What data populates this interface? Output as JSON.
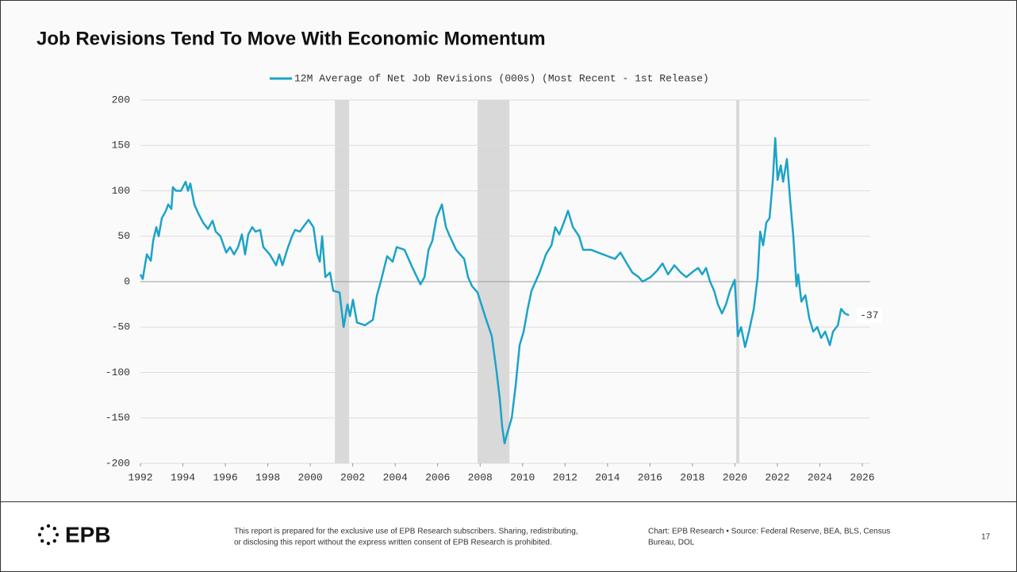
{
  "chart_data": {
    "type": "line",
    "title": "Job Revisions Tend To Move With Economic Momentum",
    "x": [
      1992.0,
      1992.11,
      1992.3,
      1992.49,
      1992.6,
      1992.75,
      1992.86,
      1993.01,
      1993.2,
      1993.31,
      1993.46,
      1993.53,
      1993.68,
      1993.91,
      1994.13,
      1994.24,
      1994.35,
      1994.54,
      1994.73,
      1994.95,
      1995.18,
      1995.4,
      1995.55,
      1995.77,
      1996.04,
      1996.22,
      1996.41,
      1996.6,
      1996.78,
      1996.93,
      1997.08,
      1997.27,
      1997.42,
      1997.64,
      1997.79,
      1998.09,
      1998.39,
      1998.54,
      1998.69,
      1998.91,
      1999.14,
      1999.29,
      1999.51,
      1999.66,
      1999.92,
      2000.15,
      2000.33,
      2000.45,
      2000.56,
      2000.71,
      2000.93,
      2001.08,
      2001.38,
      2001.57,
      2001.75,
      2001.87,
      2002.01,
      2002.2,
      2002.58,
      2002.95,
      2003.14,
      2003.32,
      2003.62,
      2003.88,
      2004.07,
      2004.44,
      2004.82,
      2005.19,
      2005.38,
      2005.57,
      2005.75,
      2005.94,
      2006.2,
      2006.39,
      2006.57,
      2006.87,
      2007.25,
      2007.43,
      2007.62,
      2007.88,
      2008.26,
      2008.55,
      2008.78,
      2008.93,
      2009.04,
      2009.15,
      2009.3,
      2009.49,
      2009.67,
      2009.86,
      2010.05,
      2010.24,
      2010.42,
      2010.8,
      2011.1,
      2011.36,
      2011.54,
      2011.73,
      2011.99,
      2012.14,
      2012.37,
      2012.66,
      2012.85,
      2013.23,
      2013.79,
      2014.35,
      2014.61,
      2014.91,
      2015.17,
      2015.47,
      2015.65,
      2016.03,
      2016.33,
      2016.59,
      2016.85,
      2017.15,
      2017.45,
      2017.71,
      2018.08,
      2018.27,
      2018.46,
      2018.64,
      2018.83,
      2019.02,
      2019.2,
      2019.39,
      2019.58,
      2019.77,
      2019.99,
      2020.14,
      2020.29,
      2020.48,
      2020.66,
      2020.89,
      2021.07,
      2021.19,
      2021.33,
      2021.48,
      2021.63,
      2021.78,
      2021.9,
      2022.01,
      2022.16,
      2022.27,
      2022.45,
      2022.6,
      2022.75,
      2022.9,
      2022.98,
      2023.13,
      2023.32,
      2023.5,
      2023.69,
      2023.88,
      2024.06,
      2024.25,
      2024.47,
      2024.62,
      2024.85,
      2025.0,
      2025.18,
      2025.37
    ],
    "series": [
      {
        "name": "12M Average of Net Job Revisions (000s) (Most Recent - 1st Release)",
        "color": "#1ba3c8",
        "values": [
          8,
          3,
          30,
          23,
          45,
          60,
          50,
          70,
          78,
          85,
          80,
          104,
          100,
          100,
          110,
          100,
          108,
          85,
          75,
          65,
          58,
          67,
          55,
          50,
          32,
          38,
          30,
          38,
          52,
          30,
          52,
          60,
          55,
          57,
          38,
          30,
          18,
          30,
          18,
          35,
          50,
          57,
          55,
          60,
          68,
          60,
          30,
          22,
          50,
          5,
          10,
          -10,
          -12,
          -50,
          -25,
          -38,
          -20,
          -45,
          -48,
          -42,
          -15,
          0,
          28,
          22,
          38,
          35,
          15,
          -3,
          5,
          35,
          45,
          70,
          85,
          60,
          50,
          35,
          25,
          5,
          -5,
          -12,
          -40,
          -60,
          -100,
          -130,
          -160,
          -178,
          -165,
          -150,
          -115,
          -70,
          -55,
          -30,
          -10,
          10,
          30,
          40,
          60,
          52,
          68,
          78,
          60,
          50,
          35,
          35,
          30,
          25,
          32,
          20,
          10,
          5,
          0,
          5,
          12,
          20,
          8,
          18,
          10,
          5,
          12,
          15,
          8,
          15,
          0,
          -10,
          -25,
          -35,
          -25,
          -10,
          2,
          -60,
          -50,
          -72,
          -55,
          -30,
          5,
          55,
          40,
          65,
          70,
          110,
          158,
          112,
          128,
          110,
          135,
          90,
          50,
          -5,
          8,
          -22,
          -15,
          -40,
          -55,
          -50,
          -62,
          -55,
          -70,
          -55,
          -48,
          -30,
          -35,
          -37
        ]
      }
    ],
    "end_label": {
      "x": 2025.37,
      "value": -37
    },
    "recessions": [
      [
        2001.16,
        2001.83
      ],
      [
        2007.88,
        2009.38
      ],
      [
        2020.06,
        2020.21
      ]
    ],
    "recession_color": "#d9d9d9",
    "xlim": [
      1992,
      2026
    ],
    "xticks": [
      1992,
      1994,
      1996,
      1998,
      2000,
      2002,
      2004,
      2006,
      2008,
      2010,
      2012,
      2014,
      2016,
      2018,
      2020,
      2022,
      2024,
      2026
    ],
    "ylim": [
      -200,
      200
    ],
    "yticks": [
      -200,
      -150,
      -100,
      -50,
      0,
      50,
      100,
      150,
      200
    ],
    "grid": true
  },
  "footer": {
    "logo": "EPB",
    "disclaimer": [
      "This report is prepared for the exclusive use of EPB Research subscribers. Sharing, redistributing,",
      "or disclosing this report without the express written consent of EPB Research is prohibited."
    ],
    "source": [
      "Chart: EPB Research  •  Source: Federal Reserve, BEA, BLS, Census",
      "Bureau, DOL"
    ],
    "page": "17"
  }
}
